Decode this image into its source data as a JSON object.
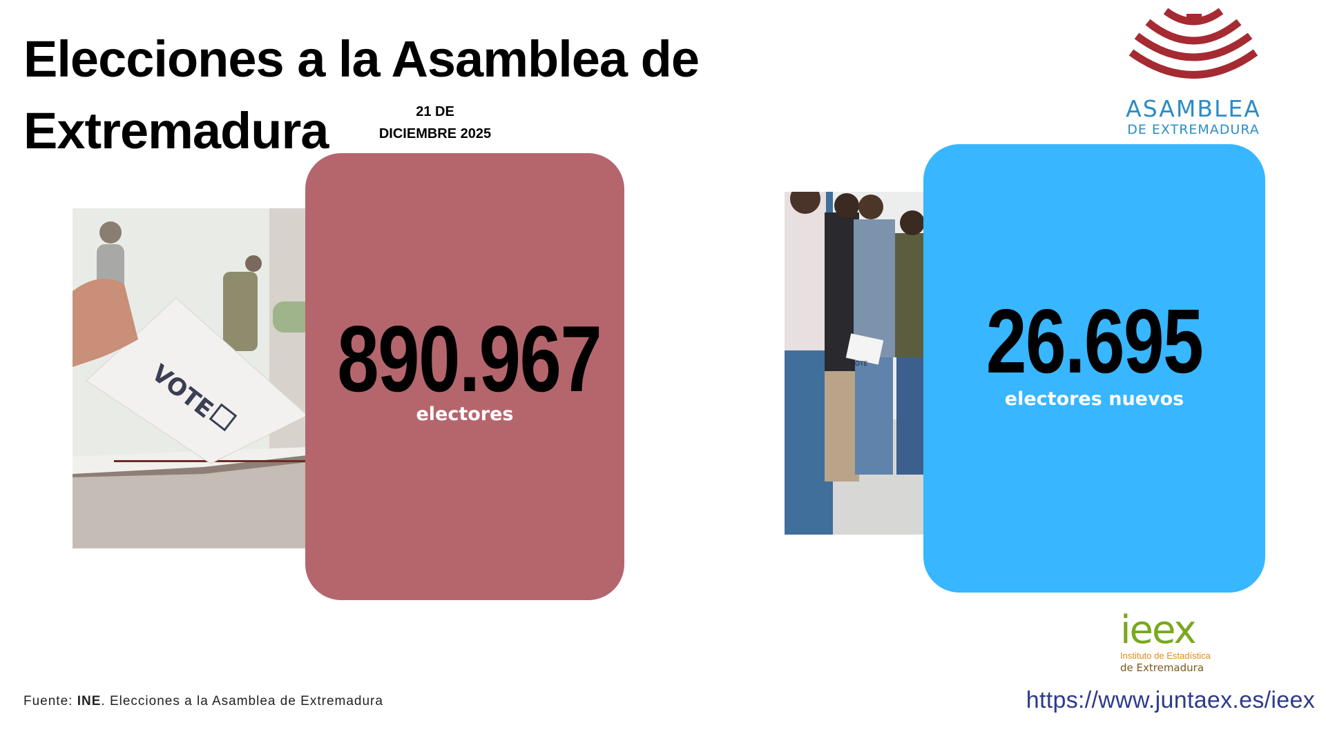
{
  "header": {
    "title": "Elecciones a la Asamblea de Extremadura",
    "date_line1": "21 DE",
    "date_line2": "DICIEMBRE 2025"
  },
  "logo_asamblea": {
    "line1": "ASAMBLEA",
    "line2": "DE EXTREMADURA",
    "color_arcs": "#a52a32",
    "color_text": "#2b8cc4"
  },
  "cards": [
    {
      "value": "890.967",
      "label": "electores",
      "color": "#b5666d"
    },
    {
      "value": "26.695",
      "label": "electores nuevos",
      "color": "#38b6ff"
    }
  ],
  "photos": {
    "vote_text": "VOTE",
    "queue_text": "VOTE"
  },
  "logo_ieex": {
    "brand": "ieex",
    "line1": "Instituto de Estadística",
    "line2": "de Extremadura"
  },
  "footer": {
    "source_prefix": "Fuente: ",
    "source_bold": "INE",
    "source_rest": ". Elecciones a la Asamblea de Extremadura",
    "url": "https://www.juntaex.es/ieex"
  }
}
